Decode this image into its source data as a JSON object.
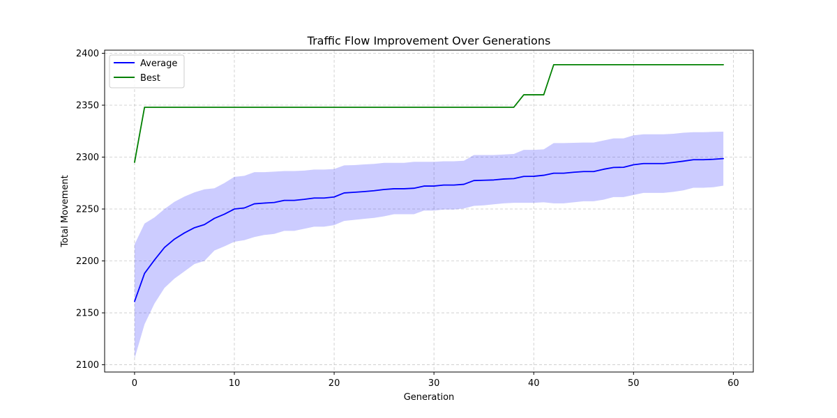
{
  "chart_data": {
    "type": "line",
    "title": "Traffic Flow Improvement Over Generations",
    "xlabel": "Generation",
    "ylabel": "Total Movement",
    "xlim": [
      -3,
      62
    ],
    "ylim": [
      2093,
      2403
    ],
    "xticks": [
      0,
      10,
      20,
      30,
      40,
      50,
      60
    ],
    "yticks": [
      2100,
      2150,
      2200,
      2250,
      2300,
      2350,
      2400
    ],
    "grid": true,
    "legend_position": "top-left",
    "x": [
      0,
      1,
      2,
      3,
      4,
      5,
      6,
      7,
      8,
      9,
      10,
      11,
      12,
      13,
      14,
      15,
      16,
      17,
      18,
      19,
      20,
      21,
      22,
      23,
      24,
      25,
      26,
      27,
      28,
      29,
      30,
      31,
      32,
      33,
      34,
      35,
      36,
      37,
      38,
      39,
      40,
      41,
      42,
      43,
      44,
      45,
      46,
      47,
      48,
      49,
      50,
      51,
      52,
      53,
      54,
      55,
      56,
      57,
      58,
      59
    ],
    "series": [
      {
        "name": "Average",
        "color": "#0000ff",
        "values": [
          2161,
          2188,
          2201,
          2213,
          2221,
          2227,
          2232,
          2235,
          2241,
          2245,
          2250,
          2251,
          2255,
          2255.7,
          2256.3,
          2258.3,
          2258.3,
          2259.3,
          2260.6,
          2260.6,
          2261.6,
          2265.5,
          2266.1,
          2266.8,
          2267.6,
          2268.8,
          2269.5,
          2269.5,
          2270,
          2272.1,
          2272.1,
          2273.1,
          2273.1,
          2273.8,
          2277.4,
          2277.7,
          2278,
          2278.9,
          2279.3,
          2281.4,
          2281.5,
          2282.5,
          2284.5,
          2284.5,
          2285.4,
          2286.1,
          2286.1,
          2288.3,
          2290,
          2290.2,
          2292.6,
          2293.8,
          2293.8,
          2293.8,
          2294.9,
          2296.1,
          2297.5,
          2297.5,
          2297.9,
          2298.6
        ]
      },
      {
        "name": "Best",
        "color": "#008000",
        "values": [
          2295,
          2348,
          2348,
          2348,
          2348,
          2348,
          2348,
          2348,
          2348,
          2348,
          2348,
          2348,
          2348,
          2348,
          2348,
          2348,
          2348,
          2348,
          2348,
          2348,
          2348,
          2348,
          2348,
          2348,
          2348,
          2348,
          2348,
          2348,
          2348,
          2348,
          2348,
          2348,
          2348,
          2348,
          2348,
          2348,
          2348,
          2348,
          2348,
          2360,
          2360,
          2360,
          2389,
          2389,
          2389,
          2389,
          2389,
          2389,
          2389,
          2389,
          2389,
          2389,
          2389,
          2389,
          2389,
          2389,
          2389,
          2389,
          2389,
          2389
        ]
      }
    ],
    "band": {
      "series": "Average",
      "color": "#0000ff",
      "opacity": 0.2,
      "upper": [
        2216,
        2236,
        2242,
        2250,
        2257,
        2262,
        2266,
        2269,
        2270,
        2275,
        2281,
        2282,
        2285.5,
        2285.5,
        2286,
        2286.6,
        2286.6,
        2287,
        2288,
        2288,
        2288.5,
        2292,
        2292.3,
        2293,
        2293.5,
        2294.5,
        2294.5,
        2294.5,
        2295.5,
        2295.5,
        2295.5,
        2296,
        2296,
        2296.5,
        2302,
        2302,
        2302,
        2302.5,
        2303,
        2307,
        2307,
        2307.5,
        2313.5,
        2313.5,
        2313.8,
        2314,
        2314,
        2316,
        2318,
        2318,
        2321,
        2322,
        2322,
        2322,
        2322.5,
        2323.5,
        2324,
        2324,
        2324.3,
        2324.5
      ],
      "lower": [
        2106,
        2139,
        2159,
        2174,
        2183,
        2190,
        2197,
        2200,
        2210,
        2214,
        2218.5,
        2220,
        2223,
        2225,
        2226,
        2229,
        2229,
        2231,
        2233,
        2233,
        2234.5,
        2238.5,
        2239.5,
        2240.5,
        2241.5,
        2243,
        2245,
        2245,
        2245,
        2248.5,
        2248.5,
        2249.5,
        2249.5,
        2250.5,
        2253,
        2253.5,
        2254.5,
        2255.5,
        2256,
        2256,
        2256,
        2256.5,
        2255.5,
        2255.5,
        2256.5,
        2257.5,
        2257.5,
        2259,
        2261.5,
        2261.5,
        2263.5,
        2265.5,
        2265.5,
        2265.5,
        2266.5,
        2268,
        2270.5,
        2270.5,
        2271,
        2272.5
      ]
    }
  }
}
